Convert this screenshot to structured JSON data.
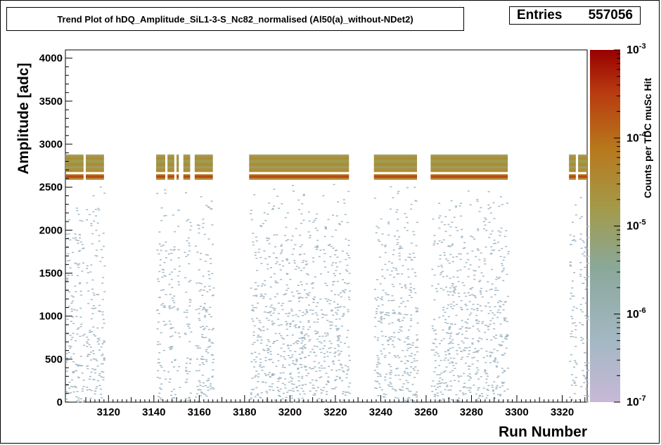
{
  "chart_data": {
    "type": "heatmap",
    "title": "Trend Plot of hDQ_Amplitude_SiL1-3-S_Nc82_normalised (Al50(a)_without-NDet2)",
    "stats": {
      "label": "Entries",
      "value": "557056"
    },
    "xlabel": "Run Number",
    "ylabel": "Amplitude [adc]",
    "zlabel": "Counts per TDC muSc Hit",
    "xlim": [
      3101,
      3331
    ],
    "ylim": [
      0,
      4096
    ],
    "zlim": [
      1e-07,
      0.001
    ],
    "zscale": "log",
    "x_ticks": [
      "3120",
      "3140",
      "3160",
      "3180",
      "3200",
      "3220",
      "3240",
      "3260",
      "3280",
      "3300",
      "3320"
    ],
    "y_ticks": [
      "0",
      "500",
      "1000",
      "1500",
      "2000",
      "2500",
      "3000",
      "3500",
      "4000"
    ],
    "z_ticks": [
      {
        "base": "10",
        "exp": "-7"
      },
      {
        "base": "10",
        "exp": "-6"
      },
      {
        "base": "10",
        "exp": "-5"
      },
      {
        "base": "10",
        "exp": "-4"
      },
      {
        "base": "10",
        "exp": "-3"
      }
    ],
    "run_ranges": [
      [
        3101,
        3109
      ],
      [
        3110,
        3118
      ],
      [
        3141,
        3145
      ],
      [
        3146,
        3149
      ],
      [
        3150,
        3151
      ],
      [
        3153,
        3156
      ],
      [
        3158,
        3166
      ],
      [
        3182,
        3226
      ],
      [
        3237,
        3256
      ],
      [
        3262,
        3296
      ],
      [
        3323,
        3326
      ],
      [
        3327,
        3331
      ]
    ],
    "bands": [
      {
        "name": "main-band",
        "y": [
          2590,
          2650
        ],
        "z": 0.0002
      },
      {
        "name": "upper-band",
        "y": [
          2680,
          2880
        ],
        "z": 2e-05
      }
    ],
    "palette": [
      "#c8b8d8",
      "#a4b8c4",
      "#8aa89a",
      "#a39a4a",
      "#b8781c",
      "#b83a10",
      "#980000"
    ]
  }
}
